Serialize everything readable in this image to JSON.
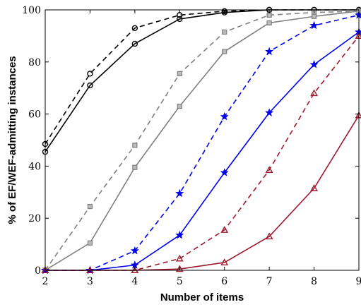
{
  "chart_data": {
    "type": "line",
    "xlabel": "Number of items",
    "ylabel": "% of EF/WEF-admitting instances",
    "xlim": [
      2,
      9
    ],
    "ylim": [
      0,
      100
    ],
    "x_ticks": [
      2,
      3,
      4,
      5,
      6,
      7,
      8,
      9
    ],
    "y_ticks": [
      0,
      20,
      40,
      60,
      80,
      100
    ],
    "grid": false,
    "legend": "none",
    "x": [
      2,
      3,
      4,
      5,
      6,
      7,
      8,
      9
    ],
    "series": [
      {
        "color": "#000000",
        "dash": true,
        "marker": "circle",
        "values": [
          48.5,
          75.5,
          93,
          98,
          99.5,
          100,
          100,
          100
        ]
      },
      {
        "color": "#000000",
        "dash": false,
        "marker": "circle",
        "values": [
          45.5,
          71,
          87,
          96.5,
          99,
          100,
          100,
          100
        ]
      },
      {
        "color": "#808080",
        "dash": true,
        "marker": "square",
        "values": [
          0,
          24.5,
          48,
          75.5,
          91.5,
          98,
          99,
          99.5
        ]
      },
      {
        "color": "#808080",
        "dash": false,
        "marker": "square",
        "values": [
          0,
          10.5,
          39.5,
          63,
          84,
          95,
          97.5,
          99.5
        ]
      },
      {
        "color": "#0000ee",
        "dash": true,
        "marker": "star",
        "values": [
          0,
          0,
          7.5,
          29.5,
          59,
          84,
          94,
          98
        ]
      },
      {
        "color": "#0000ee",
        "dash": false,
        "marker": "star",
        "values": [
          0,
          0,
          2,
          13.5,
          37.5,
          60.5,
          79,
          91.5
        ]
      },
      {
        "color": "#a0192f",
        "dash": true,
        "marker": "triangle",
        "values": [
          0,
          0,
          0,
          4.5,
          15.5,
          38.5,
          68,
          90
        ]
      },
      {
        "color": "#a0192f",
        "dash": false,
        "marker": "triangle",
        "values": [
          0,
          0,
          0,
          0.5,
          3,
          13,
          31.5,
          59.5
        ]
      }
    ]
  }
}
